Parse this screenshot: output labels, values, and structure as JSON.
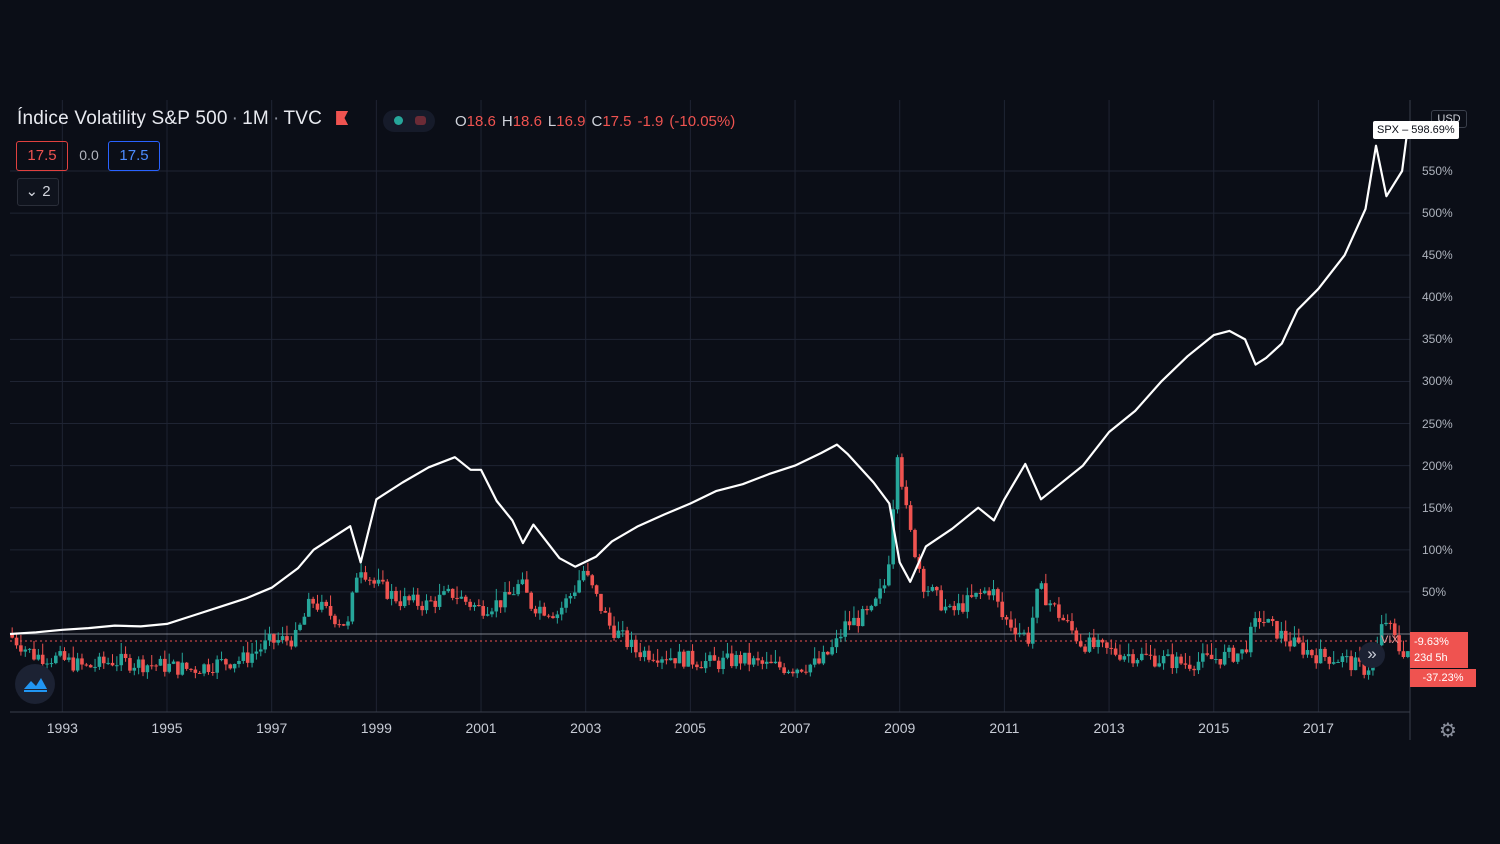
{
  "header": {
    "name": "Índice Volatility S&P 500",
    "interval": "1M",
    "source": "TVC",
    "open_label": "O",
    "open": "18.6",
    "high_label": "H",
    "high": "18.6",
    "low_label": "L",
    "low": "16.9",
    "close_label": "C",
    "close": "17.5",
    "change": "-1.9",
    "change_pct": "(-10.05%)"
  },
  "quote": {
    "bid": "17.5",
    "spread": "0.0",
    "ask": "17.5"
  },
  "collapse_label": "2",
  "currency": "USD",
  "compare": {
    "symbol": "SPX",
    "value": "598.69%"
  },
  "vix_tag": {
    "symbol": "VIX",
    "value": "-9.63%",
    "countdown": "23d 5h",
    "value2": "-37.23%"
  },
  "colors": {
    "background": "#0b0e17",
    "up": "#26a69a",
    "down": "#ef5350",
    "line": "#ffffff",
    "grid": "#1f2433"
  },
  "icons": {
    "settings": "gear-icon",
    "scroll": "double-chevron-right-icon",
    "logo": "tradingview-logo-icon"
  },
  "chart_data": {
    "type": "line",
    "x_tick_labels": [
      "1993",
      "1995",
      "1997",
      "1999",
      "2001",
      "2003",
      "2005",
      "2007",
      "2009",
      "2011",
      "2013",
      "2015",
      "2017"
    ],
    "y_tick_labels": [
      "550%",
      "500%",
      "450%",
      "400%",
      "350%",
      "300%",
      "250%",
      "200%",
      "150%",
      "100%",
      "50%"
    ],
    "ylim": [
      -50,
      600
    ],
    "grid": true,
    "series": [
      {
        "name": "SPX",
        "x": [
          1992.0,
          1992.5,
          1993.0,
          1993.5,
          1994.0,
          1994.5,
          1995.0,
          1995.5,
          1996.0,
          1996.5,
          1997.0,
          1997.5,
          1997.8,
          1998.0,
          1998.5,
          1998.7,
          1999.0,
          1999.5,
          2000.0,
          2000.5,
          2000.8,
          2001.0,
          2001.3,
          2001.6,
          2001.8,
          2002.0,
          2002.5,
          2002.8,
          2003.2,
          2003.5,
          2004.0,
          2004.5,
          2005.0,
          2005.5,
          2006.0,
          2006.5,
          2007.0,
          2007.5,
          2007.8,
          2008.0,
          2008.5,
          2008.8,
          2009.0,
          2009.2,
          2009.5,
          2010.0,
          2010.5,
          2010.8,
          2011.0,
          2011.4,
          2011.7,
          2012.0,
          2012.5,
          2013.0,
          2013.5,
          2014.0,
          2014.5,
          2015.0,
          2015.3,
          2015.6,
          2015.8,
          2016.0,
          2016.3,
          2016.6,
          2017.0,
          2017.5,
          2017.9,
          2018.1,
          2018.3,
          2018.6,
          2018.7
        ],
        "values": [
          0,
          2,
          5,
          7,
          10,
          9,
          12,
          22,
          32,
          42,
          55,
          78,
          100,
          108,
          128,
          85,
          160,
          180,
          198,
          210,
          195,
          195,
          158,
          135,
          108,
          130,
          90,
          80,
          92,
          110,
          128,
          142,
          155,
          170,
          178,
          190,
          200,
          215,
          225,
          214,
          180,
          155,
          85,
          62,
          104,
          125,
          150,
          135,
          160,
          202,
          160,
          175,
          200,
          240,
          265,
          300,
          330,
          355,
          360,
          350,
          320,
          328,
          345,
          385,
          410,
          450,
          505,
          580,
          520,
          550,
          598
        ]
      },
      {
        "name": "VIX",
        "type": "candlestick",
        "x": [
          1992.0,
          1992.5,
          1993.0,
          1993.5,
          1994.0,
          1994.5,
          1995.0,
          1995.5,
          1996.0,
          1996.5,
          1997.0,
          1997.5,
          1997.8,
          1998.0,
          1998.5,
          1998.7,
          1999.0,
          1999.5,
          2000.0,
          2000.5,
          2001.0,
          2001.5,
          2001.8,
          2002.0,
          2002.5,
          2002.8,
          2003.0,
          2003.5,
          2004.0,
          2004.5,
          2005.0,
          2005.5,
          2006.0,
          2006.5,
          2007.0,
          2007.5,
          2007.8,
          2008.0,
          2008.5,
          2008.8,
          2009.0,
          2009.2,
          2009.5,
          2010.0,
          2010.4,
          2010.8,
          2011.0,
          2011.5,
          2011.7,
          2012.0,
          2012.5,
          2013.0,
          2013.5,
          2014.0,
          2014.5,
          2015.0,
          2015.6,
          2015.9,
          2016.0,
          2016.5,
          2017.0,
          2017.5,
          2017.9,
          2018.1,
          2018.3,
          2018.6
        ],
        "values": [
          0,
          -25,
          -30,
          -40,
          -32,
          -35,
          -38,
          -42,
          -35,
          -30,
          -10,
          -5,
          40,
          30,
          10,
          85,
          60,
          40,
          35,
          48,
          30,
          40,
          60,
          35,
          25,
          50,
          75,
          10,
          -20,
          -25,
          -30,
          -35,
          -30,
          -38,
          -40,
          -35,
          -15,
          10,
          25,
          65,
          220,
          130,
          60,
          25,
          40,
          55,
          20,
          -5,
          55,
          30,
          -10,
          -20,
          -25,
          -30,
          -35,
          -30,
          -22,
          20,
          15,
          -10,
          -25,
          -30,
          -42,
          -35,
          20,
          -20
        ]
      }
    ]
  }
}
